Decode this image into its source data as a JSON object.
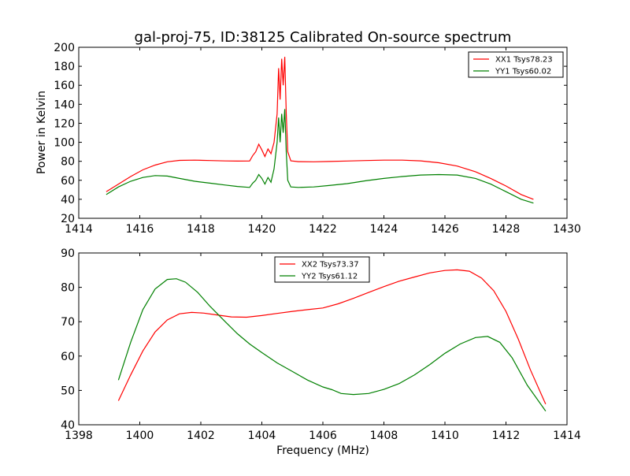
{
  "chart_data": [
    {
      "type": "line",
      "title": "gal-proj-75, ID:38125 Calibrated On-source spectrum",
      "xlabel": "",
      "ylabel": "Power in Kelvin",
      "xlim": [
        1414,
        1430
      ],
      "ylim": [
        20,
        200
      ],
      "xticks": [
        1414,
        1416,
        1418,
        1420,
        1422,
        1424,
        1426,
        1428,
        1430
      ],
      "yticks": [
        20,
        40,
        60,
        80,
        100,
        120,
        140,
        160,
        180,
        200
      ],
      "grid": false,
      "legend": "top-right",
      "series": [
        {
          "name": "XX1 Tsys78.23",
          "color": "#ff0000",
          "x": [
            1414.9,
            1415.3,
            1415.7,
            1416.1,
            1416.5,
            1416.9,
            1417.3,
            1417.8,
            1418.3,
            1418.8,
            1419.2,
            1419.6,
            1419.7,
            1419.8,
            1419.9,
            1420.0,
            1420.1,
            1420.2,
            1420.3,
            1420.4,
            1420.5,
            1420.55,
            1420.6,
            1420.65,
            1420.7,
            1420.75,
            1420.8,
            1420.85,
            1420.95,
            1421.2,
            1421.7,
            1422.2,
            1422.8,
            1423.4,
            1424.0,
            1424.6,
            1425.2,
            1425.8,
            1426.4,
            1427.0,
            1427.5,
            1428.0,
            1428.5,
            1428.9
          ],
          "y": [
            48,
            56,
            64,
            71,
            76,
            79.5,
            81,
            81.2,
            80.8,
            80.4,
            80.2,
            80.3,
            86,
            90,
            98,
            92,
            85,
            93,
            88,
            100,
            130,
            178,
            145,
            188,
            160,
            190,
            130,
            90,
            80.5,
            79.6,
            79.5,
            79.8,
            80.3,
            80.8,
            81.2,
            81.2,
            80.5,
            78.5,
            75,
            69,
            62,
            54,
            45,
            40
          ]
        },
        {
          "name": "YY1 Tsys60.02",
          "color": "#008000",
          "x": [
            1414.9,
            1415.3,
            1415.7,
            1416.1,
            1416.5,
            1416.9,
            1417.3,
            1417.8,
            1418.3,
            1418.8,
            1419.2,
            1419.6,
            1419.7,
            1419.8,
            1419.9,
            1420.0,
            1420.1,
            1420.2,
            1420.3,
            1420.4,
            1420.5,
            1420.55,
            1420.6,
            1420.65,
            1420.7,
            1420.75,
            1420.8,
            1420.85,
            1420.95,
            1421.2,
            1421.7,
            1422.2,
            1422.8,
            1423.4,
            1424.0,
            1424.6,
            1425.2,
            1425.8,
            1426.4,
            1427.0,
            1427.5,
            1428.0,
            1428.5,
            1428.9
          ],
          "y": [
            45,
            53,
            59,
            63,
            65,
            64.5,
            62,
            59,
            57,
            55,
            53.5,
            52.5,
            57,
            60,
            66,
            62,
            56,
            63,
            58,
            72,
            100,
            126,
            100,
            130,
            110,
            135,
            90,
            60,
            53,
            52.5,
            53,
            54.5,
            56.5,
            59.5,
            62,
            64,
            65.5,
            66,
            65.5,
            62,
            56,
            48,
            40,
            36
          ]
        }
      ]
    },
    {
      "type": "line",
      "title": "",
      "xlabel": "Frequency (MHz)",
      "ylabel": "",
      "xlim": [
        1398,
        1414
      ],
      "ylim": [
        40,
        90
      ],
      "xticks": [
        1398,
        1400,
        1402,
        1404,
        1406,
        1408,
        1410,
        1412,
        1414
      ],
      "yticks": [
        40,
        50,
        60,
        70,
        80,
        90
      ],
      "grid": false,
      "legend": "top-center",
      "series": [
        {
          "name": "XX2 Tsys73.37",
          "color": "#ff0000",
          "x": [
            1399.3,
            1399.7,
            1400.1,
            1400.5,
            1400.9,
            1401.3,
            1401.7,
            1402.1,
            1402.5,
            1403.0,
            1403.5,
            1404.0,
            1404.5,
            1405.0,
            1405.5,
            1406.0,
            1406.5,
            1407.0,
            1407.5,
            1408.0,
            1408.5,
            1409.0,
            1409.5,
            1410.0,
            1410.4,
            1410.8,
            1411.2,
            1411.6,
            1412.0,
            1412.4,
            1412.8,
            1413.3
          ],
          "y": [
            47,
            54.5,
            61.5,
            67,
            70.5,
            72.3,
            72.7,
            72.5,
            72,
            71.4,
            71.3,
            71.8,
            72.4,
            73,
            73.5,
            74,
            75.2,
            76.8,
            78.5,
            80.2,
            81.8,
            83,
            84.2,
            84.9,
            85.1,
            84.7,
            82.7,
            79,
            73,
            65,
            56,
            46
          ]
        },
        {
          "name": "YY2 Tsys61.12",
          "color": "#008000",
          "x": [
            1399.3,
            1399.7,
            1400.1,
            1400.5,
            1400.9,
            1401.2,
            1401.5,
            1401.9,
            1402.3,
            1402.8,
            1403.2,
            1403.6,
            1404.0,
            1404.5,
            1405.0,
            1405.5,
            1406.0,
            1406.3,
            1406.6,
            1407.0,
            1407.5,
            1408.0,
            1408.5,
            1409.0,
            1409.5,
            1410.0,
            1410.5,
            1411.0,
            1411.4,
            1411.8,
            1412.2,
            1412.7,
            1413.3
          ],
          "y": [
            53,
            64,
            73.5,
            79.5,
            82.3,
            82.5,
            81.5,
            78.5,
            74.5,
            70,
            66.5,
            63.5,
            61,
            58,
            55.5,
            53,
            51,
            50.2,
            49.1,
            48.8,
            49.1,
            50.3,
            52,
            54.5,
            57.5,
            60.8,
            63.5,
            65.4,
            65.7,
            64,
            59.5,
            51.5,
            44
          ]
        }
      ]
    }
  ]
}
